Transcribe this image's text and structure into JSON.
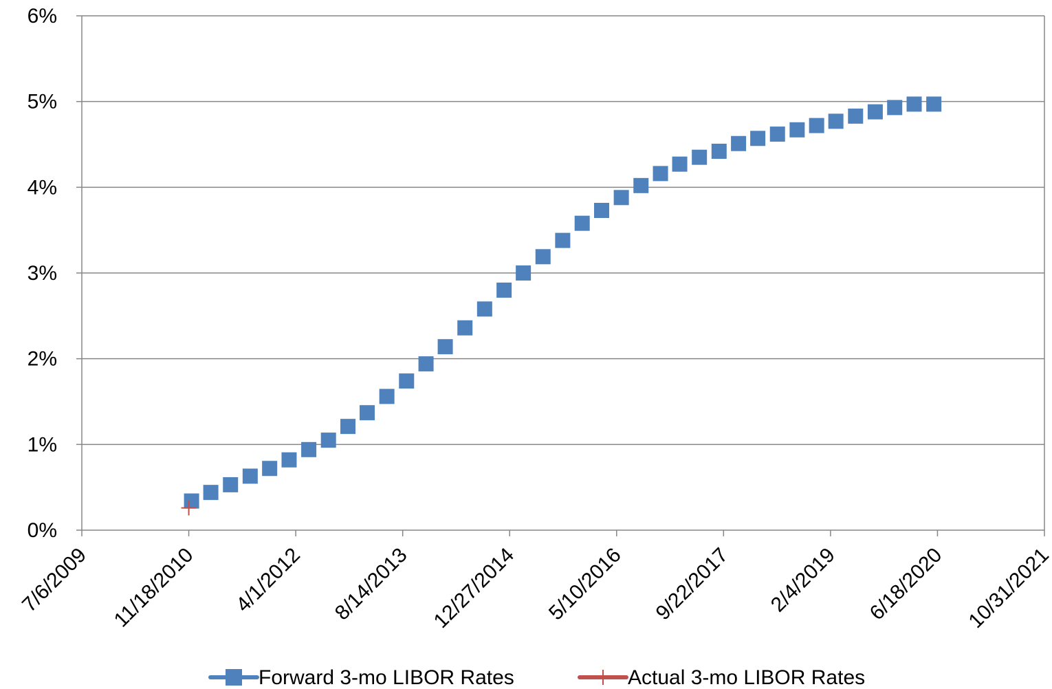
{
  "chart_data": {
    "type": "scatter",
    "title": "",
    "xlabel": "",
    "ylabel": "",
    "x_axis": {
      "type": "date",
      "min": "2009-07-06",
      "max": "2021-10-31",
      "ticks": [
        "2009-07-06",
        "2010-11-18",
        "2012-04-01",
        "2013-08-14",
        "2014-12-27",
        "2016-05-10",
        "2017-09-22",
        "2019-02-04",
        "2020-06-18",
        "2021-10-31"
      ],
      "tick_labels": [
        "7/6/2009",
        "11/18/2010",
        "4/1/2012",
        "8/14/2013",
        "12/27/2014",
        "5/10/2016",
        "9/22/2017",
        "2/4/2019",
        "6/18/2020",
        "10/31/2021"
      ]
    },
    "y_axis": {
      "min": 0,
      "max": 6,
      "ticks": [
        0,
        1,
        2,
        3,
        4,
        5,
        6
      ],
      "tick_labels": [
        "0%",
        "1%",
        "2%",
        "3%",
        "4%",
        "5%",
        "6%"
      ]
    },
    "grid": "horizontal",
    "legend": "bottom",
    "series": [
      {
        "name": "Forward 3-mo LIBOR Rates",
        "color": "#4f81bd",
        "marker": "square",
        "x": [
          "2010-12-01",
          "2011-03-01",
          "2011-06-01",
          "2011-09-01",
          "2011-12-01",
          "2012-03-01",
          "2012-06-01",
          "2012-09-01",
          "2012-12-01",
          "2013-03-01",
          "2013-06-01",
          "2013-09-01",
          "2013-12-01",
          "2014-03-01",
          "2014-06-01",
          "2014-09-01",
          "2014-12-01",
          "2015-03-01",
          "2015-06-01",
          "2015-09-01",
          "2015-12-01",
          "2016-03-01",
          "2016-06-01",
          "2016-09-01",
          "2016-12-01",
          "2017-03-01",
          "2017-06-01",
          "2017-09-01",
          "2017-12-01",
          "2018-03-01",
          "2018-06-01",
          "2018-09-01",
          "2018-12-01",
          "2019-03-01",
          "2019-06-01",
          "2019-09-01",
          "2019-12-01",
          "2020-03-01",
          "2020-06-01"
        ],
        "values": [
          0.34,
          0.44,
          0.53,
          0.63,
          0.72,
          0.82,
          0.94,
          1.05,
          1.21,
          1.37,
          1.56,
          1.74,
          1.94,
          2.14,
          2.36,
          2.58,
          2.8,
          3.0,
          3.19,
          3.38,
          3.58,
          3.73,
          3.88,
          4.02,
          4.16,
          4.27,
          4.35,
          4.42,
          4.51,
          4.57,
          4.62,
          4.67,
          4.72,
          4.77,
          4.83,
          4.88,
          4.93,
          4.97,
          4.97
        ]
      },
      {
        "name": "Actual 3-mo LIBOR Rates",
        "color": "#c0504d",
        "marker": "plus",
        "x": [
          "2010-11-18"
        ],
        "values": [
          0.26
        ]
      }
    ]
  }
}
